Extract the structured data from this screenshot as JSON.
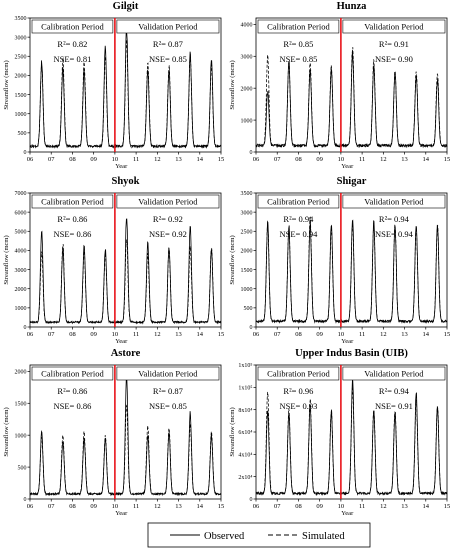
{
  "figure": {
    "legend": {
      "observed_label": "Observed",
      "simulated_label": "Simulated"
    },
    "colors": {
      "line": "#000000",
      "split": "#e8141a",
      "frame": "#000000"
    }
  },
  "chart_data": [
    {
      "type": "line",
      "title": "Gilgit",
      "xlabel": "Year",
      "ylabel": "Streamflow (mcm)",
      "x_ticks": [
        "06",
        "07",
        "08",
        "09",
        "10",
        "11",
        "12",
        "13",
        "14",
        "15"
      ],
      "y_ticks": [
        "0",
        "500",
        "1000",
        "1500",
        "2000",
        "2500",
        "3000",
        "3500"
      ],
      "xlim": [
        6,
        15
      ],
      "ylim": [
        0,
        3500
      ],
      "split_year": 10,
      "calibration": {
        "label": "Calibration Period",
        "r2": "R²= 0.82",
        "nse": "NSE= 0.81"
      },
      "validation": {
        "label": "Validation Period",
        "r2": "R²= 0.87",
        "nse": "NSE= 0.85"
      },
      "observed_peaks": [
        2350,
        2200,
        2100,
        2750,
        3250,
        2150,
        2100,
        2600,
        2400
      ],
      "simulated_peaks": [
        2300,
        2450,
        2350,
        2500,
        2900,
        2350,
        2250,
        2500,
        2250
      ],
      "base_flow": 150
    },
    {
      "type": "line",
      "title": "Hunza",
      "xlabel": "Year",
      "ylabel": "Streamflow (mcm)",
      "x_ticks": [
        "06",
        "07",
        "08",
        "09",
        "10",
        "11",
        "12",
        "13",
        "14",
        "15"
      ],
      "y_ticks": [
        "0",
        "1000",
        "2000",
        "3000",
        "4000"
      ],
      "xlim": [
        6,
        15
      ],
      "ylim": [
        0,
        4200
      ],
      "split_year": 10,
      "calibration": {
        "label": "Calibration Period",
        "r2": "R²= 0.85",
        "nse": "NSE= 0.85"
      },
      "validation": {
        "label": "Validation Period",
        "r2": "R²= 0.91",
        "nse": "NSE= 0.90"
      },
      "observed_peaks": [
        1900,
        2900,
        2600,
        2600,
        3100,
        2750,
        2500,
        2400,
        2250
      ],
      "simulated_peaks": [
        3050,
        2800,
        2800,
        2700,
        3300,
        2900,
        2500,
        2550,
        2550
      ],
      "base_flow": 200
    },
    {
      "type": "line",
      "title": "Shyok",
      "xlabel": "Year",
      "ylabel": "Streamflow (mcm)",
      "x_ticks": [
        "06",
        "07",
        "08",
        "09",
        "10",
        "11",
        "12",
        "13",
        "14",
        "15"
      ],
      "y_ticks": [
        "0",
        "1000",
        "2000",
        "3000",
        "4000",
        "5000",
        "6000",
        "7000"
      ],
      "xlim": [
        6,
        15
      ],
      "ylim": [
        0,
        7000
      ],
      "split_year": 10,
      "calibration": {
        "label": "Calibration Period",
        "r2": "R²= 0.86",
        "nse": "NSE= 0.86"
      },
      "validation": {
        "label": "Validation Period",
        "r2": "R²= 0.92",
        "nse": "NSE= 0.92"
      },
      "observed_peaks": [
        5000,
        4100,
        4200,
        4100,
        5800,
        4400,
        4200,
        5200,
        4000
      ],
      "simulated_peaks": [
        4000,
        4300,
        4000,
        3900,
        4700,
        3800,
        4100,
        4200,
        4200
      ],
      "base_flow": 250
    },
    {
      "type": "line",
      "title": "Shigar",
      "xlabel": "Year",
      "ylabel": "Streamflow (mcm)",
      "x_ticks": [
        "06",
        "07",
        "08",
        "09",
        "10",
        "11",
        "12",
        "13",
        "14",
        "15"
      ],
      "y_ticks": [
        "0",
        "500",
        "1000",
        "1500",
        "2000",
        "2500",
        "3000",
        "3500"
      ],
      "xlim": [
        6,
        15
      ],
      "ylim": [
        0,
        3500
      ],
      "split_year": 10,
      "calibration": {
        "label": "Calibration Period",
        "r2": "R²= 0.94",
        "nse": "NSE= 0.94"
      },
      "validation": {
        "label": "Validation Period",
        "r2": "R²= 0.94",
        "nse": "NSE= 0.94"
      },
      "observed_peaks": [
        2750,
        2650,
        2700,
        2700,
        2800,
        2750,
        2650,
        2700,
        2700
      ],
      "simulated_peaks": [
        2700,
        2600,
        2900,
        2600,
        2750,
        2700,
        2650,
        2600,
        2650
      ],
      "base_flow": 150
    },
    {
      "type": "line",
      "title": "Astore",
      "xlabel": "Year",
      "ylabel": "Streamflow (mcm)",
      "x_ticks": [
        "06",
        "07",
        "08",
        "09",
        "10",
        "11",
        "12",
        "13",
        "14",
        "15"
      ],
      "y_ticks": [
        "0",
        "500",
        "1000",
        "1500",
        "2000"
      ],
      "xlim": [
        6,
        15
      ],
      "ylim": [
        0,
        2100
      ],
      "split_year": 10,
      "calibration": {
        "label": "Calibration Period",
        "r2": "R²= 0.86",
        "nse": "NSE= 0.86"
      },
      "validation": {
        "label": "Validation Period",
        "r2": "R²= 0.87",
        "nse": "NSE= 0.85"
      },
      "observed_peaks": [
        1050,
        900,
        950,
        950,
        1950,
        1000,
        1050,
        1350,
        1000
      ],
      "simulated_peaks": [
        1000,
        1000,
        1050,
        1000,
        1500,
        1150,
        1100,
        1200,
        1050
      ],
      "base_flow": 80
    },
    {
      "type": "line",
      "title": "Upper Indus Basin (UIB)",
      "xlabel": "Year",
      "ylabel": "Streamflow (mcm)",
      "x_ticks": [
        "06",
        "07",
        "08",
        "09",
        "10",
        "11",
        "12",
        "13",
        "14",
        "15"
      ],
      "y_ticks": [
        "0",
        "2x10⁴",
        "4x10⁴",
        "6x10⁴",
        "8x10⁴",
        "1x10⁵",
        "1x10⁵"
      ],
      "xlim": [
        6,
        15
      ],
      "ylim": [
        0,
        120000
      ],
      "split_year": 10,
      "calibration": {
        "label": "Calibration Period",
        "r2": "R²= 0.96",
        "nse": "NSE= 0.93"
      },
      "validation": {
        "label": "Validation Period",
        "r2": "R²= 0.94",
        "nse": "NSE= 0.91"
      },
      "observed_peaks": [
        80000,
        78000,
        85000,
        78000,
        108000,
        80000,
        78000,
        96000,
        82000
      ],
      "simulated_peaks": [
        98000,
        80000,
        90000,
        80000,
        100000,
        82000,
        80000,
        90000,
        84000
      ],
      "base_flow": 5000
    }
  ]
}
